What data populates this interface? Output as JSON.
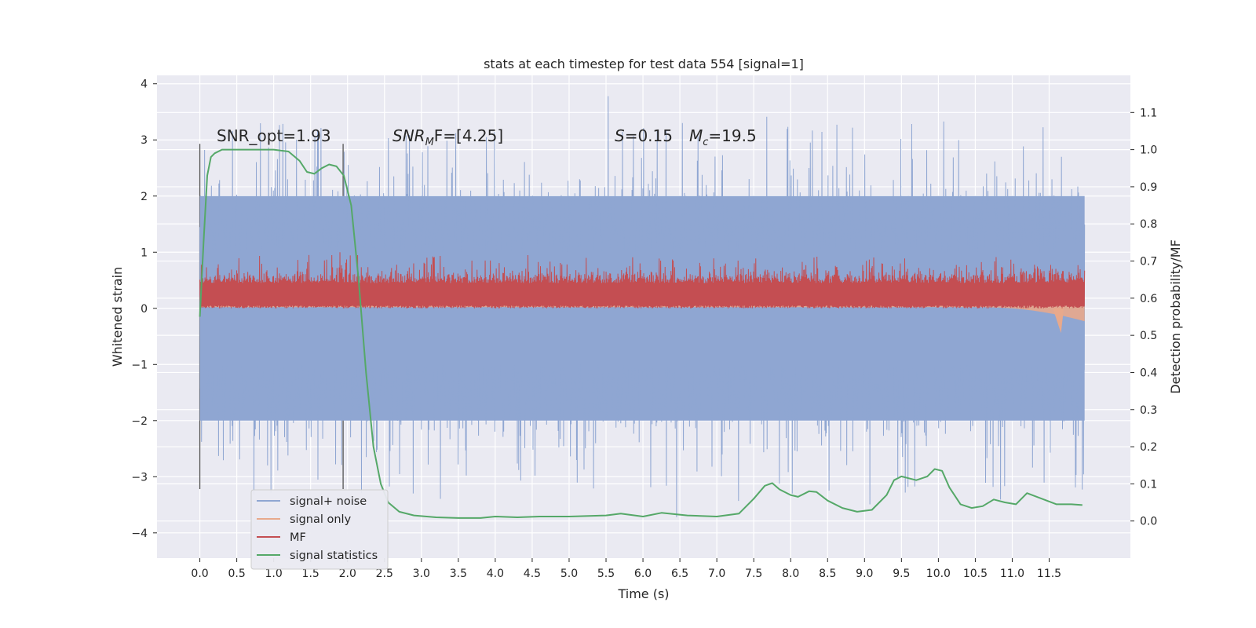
{
  "chart_data": {
    "type": "line",
    "title": "stats at each timestep for test data 554 [signal=1]",
    "xlabel": "Time (s)",
    "ylabel": "Whitened strain",
    "ylabel_right": "Detection probability/MF",
    "xlim": [
      -0.58,
      12.6
    ],
    "ylim": [
      -4.45,
      4.15
    ],
    "ylim_right": [
      -0.1,
      1.2
    ],
    "x_ticks": [
      0.0,
      0.5,
      1.0,
      1.5,
      2.0,
      2.5,
      3.0,
      3.5,
      4.0,
      4.5,
      5.0,
      5.5,
      6.0,
      6.5,
      7.0,
      7.5,
      8.0,
      8.5,
      9.0,
      9.5,
      10.0,
      10.5,
      11.0,
      11.5
    ],
    "x_tick_labels": [
      "0.0",
      "0.5",
      "1.0",
      "1.5",
      "2.0",
      "2.5",
      "3.0",
      "3.5",
      "4.0",
      "4.5",
      "5.0",
      "5.5",
      "6.0",
      "6.5",
      "7.0",
      "7.5",
      "8.0",
      "8.5",
      "9.0",
      "9.5",
      "10.0",
      "10.5",
      "11.0",
      "11.5"
    ],
    "y_ticks": [
      -4,
      -3,
      -2,
      -1,
      0,
      1,
      2,
      3,
      4
    ],
    "y_tick_labels": [
      "−4",
      "−3",
      "−2",
      "−1",
      "0",
      "1",
      "2",
      "3",
      "4"
    ],
    "y_right_ticks": [
      0.0,
      0.1,
      0.2,
      0.3,
      0.4,
      0.5,
      0.6,
      0.7,
      0.8,
      0.9,
      1.0,
      1.1
    ],
    "y_right_tick_labels": [
      "0.0",
      "0.1",
      "0.2",
      "0.3",
      "0.4",
      "0.5",
      "0.6",
      "0.7",
      "0.8",
      "0.9",
      "1.0",
      "1.1"
    ],
    "grid": true,
    "legend_position": "lower-left",
    "vertical_lines": [
      0.0,
      1.94
    ],
    "annotations": [
      {
        "text": "SNR_opt=1.93"
      },
      {
        "text": "SNR",
        "sub": "M",
        "suffix": "F=[4.25]"
      },
      {
        "text": "S",
        "suffix": "=0.15"
      },
      {
        "text": "M",
        "sub": "c",
        "suffix": "=19.5"
      }
    ],
    "series": [
      {
        "name": "signal+ noise",
        "color": "#8fa6d2",
        "axis": "left",
        "t_range": [
          0.0,
          11.98
        ],
        "band": [
          -2.0,
          2.0
        ],
        "peak_max": 3.78,
        "peak_min": -3.72
      },
      {
        "name": "signal only",
        "color": "#e8a98c",
        "axis": "left",
        "t_range": [
          0.0,
          11.98
        ],
        "envelope_max": 0.5,
        "final_dip": -0.44
      },
      {
        "name": "MF",
        "color": "#c44e52",
        "axis": "left",
        "t_range": [
          0.0,
          11.98
        ],
        "baseline": 0.05,
        "band": [
          0.05,
          0.45
        ],
        "peak_max": 1.0
      },
      {
        "name": "signal statistics",
        "color": "#55a868",
        "axis": "right",
        "x": [
          0.0,
          0.05,
          0.1,
          0.15,
          0.2,
          0.3,
          0.5,
          0.8,
          1.0,
          1.2,
          1.35,
          1.45,
          1.55,
          1.65,
          1.75,
          1.85,
          1.95,
          2.05,
          2.15,
          2.25,
          2.35,
          2.45,
          2.55,
          2.7,
          2.9,
          3.2,
          3.5,
          3.8,
          4.0,
          4.3,
          4.6,
          5.0,
          5.5,
          5.7,
          6.0,
          6.25,
          6.6,
          7.0,
          7.3,
          7.5,
          7.65,
          7.75,
          7.85,
          8.0,
          8.1,
          8.25,
          8.35,
          8.5,
          8.7,
          8.9,
          9.1,
          9.3,
          9.4,
          9.5,
          9.6,
          9.7,
          9.85,
          9.95,
          10.05,
          10.15,
          10.3,
          10.45,
          10.6,
          10.75,
          10.9,
          11.05,
          11.2,
          11.4,
          11.6,
          11.8,
          11.95
        ],
        "y": [
          0.55,
          0.75,
          0.93,
          0.98,
          0.99,
          1.0,
          1.0,
          1.0,
          1.0,
          0.995,
          0.97,
          0.94,
          0.935,
          0.95,
          0.96,
          0.955,
          0.93,
          0.85,
          0.65,
          0.4,
          0.2,
          0.1,
          0.05,
          0.025,
          0.015,
          0.01,
          0.008,
          0.008,
          0.012,
          0.01,
          0.012,
          0.012,
          0.015,
          0.02,
          0.012,
          0.022,
          0.015,
          0.012,
          0.02,
          0.06,
          0.095,
          0.102,
          0.085,
          0.07,
          0.065,
          0.08,
          0.078,
          0.055,
          0.035,
          0.025,
          0.03,
          0.07,
          0.11,
          0.12,
          0.115,
          0.11,
          0.12,
          0.14,
          0.135,
          0.09,
          0.045,
          0.035,
          0.04,
          0.058,
          0.05,
          0.045,
          0.075,
          0.06,
          0.045,
          0.045,
          0.043
        ]
      }
    ]
  }
}
